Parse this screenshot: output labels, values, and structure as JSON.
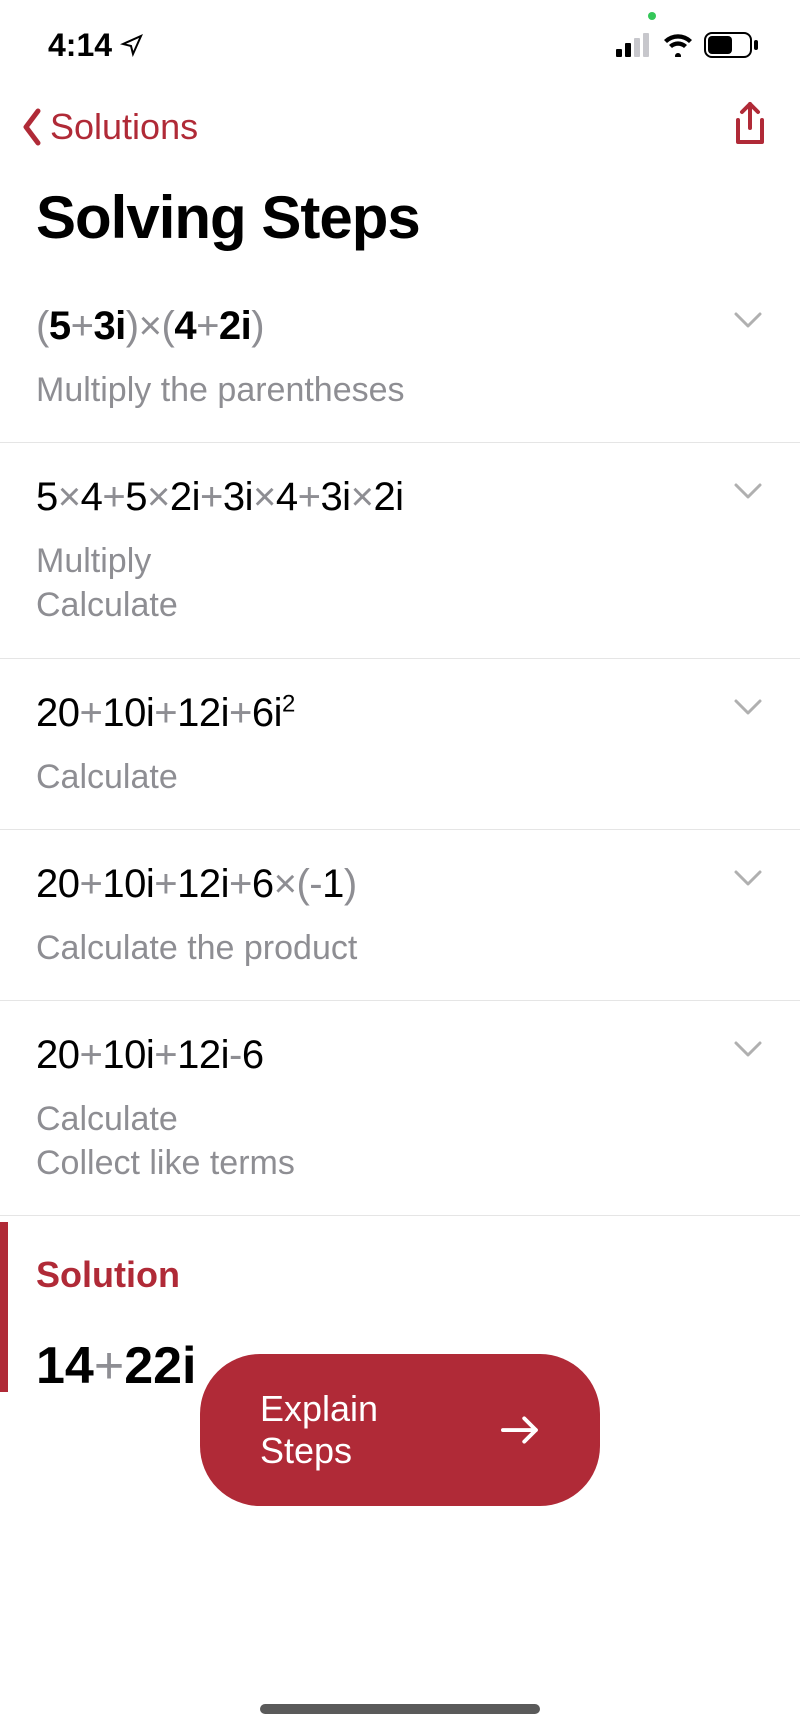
{
  "status_bar": {
    "time": "4:14",
    "battery_level": 0.55
  },
  "nav": {
    "back_label": "Solutions"
  },
  "page": {
    "title": "Solving Steps"
  },
  "steps": [
    {
      "expression_html": "<span class='paren'>(</span><span class='em-bold'>5</span><span class='op'>+</span><span class='em-bold'>3i</span><span class='paren'>)</span><span class='op'>×</span><span class='paren'>(</span><span class='em-bold'>4</span><span class='op'>+</span><span class='em-bold'>2i</span><span class='paren'>)</span>",
      "description": "Multiply the parentheses"
    },
    {
      "expression_html": "5<span class='op'>×</span>4<span class='op'>+</span>5<span class='op'>×</span>2i<span class='op'>+</span>3i<span class='op'>×</span>4<span class='op'>+</span>3i<span class='op'>×</span>2i",
      "description": "Multiply\nCalculate"
    },
    {
      "expression_html": "20<span class='op'>+</span>10i<span class='op'>+</span>12i<span class='op'>+</span>6i<span class='sup'>2</span>",
      "description": "Calculate"
    },
    {
      "expression_html": "20<span class='op'>+</span>10i<span class='op'>+</span>12i<span class='op'>+</span>6<span class='op'>×</span><span class='paren'>(</span><span class='op'>-</span>1<span class='paren'>)</span>",
      "description": "Calculate the product"
    },
    {
      "expression_html": "20<span class='op'>+</span>10i<span class='op'>+</span>12i<span class='op'>-</span>6",
      "description": "Calculate\nCollect like terms"
    }
  ],
  "solution": {
    "label": "Solution",
    "value_html": "14<span class='op'>+</span>22i"
  },
  "explain_button": {
    "label": "Explain Steps"
  },
  "colors": {
    "accent": "#b02a37",
    "text_secondary": "#8e8e93",
    "divider": "#e5e5e5",
    "chevron": "#b0b0b0"
  }
}
